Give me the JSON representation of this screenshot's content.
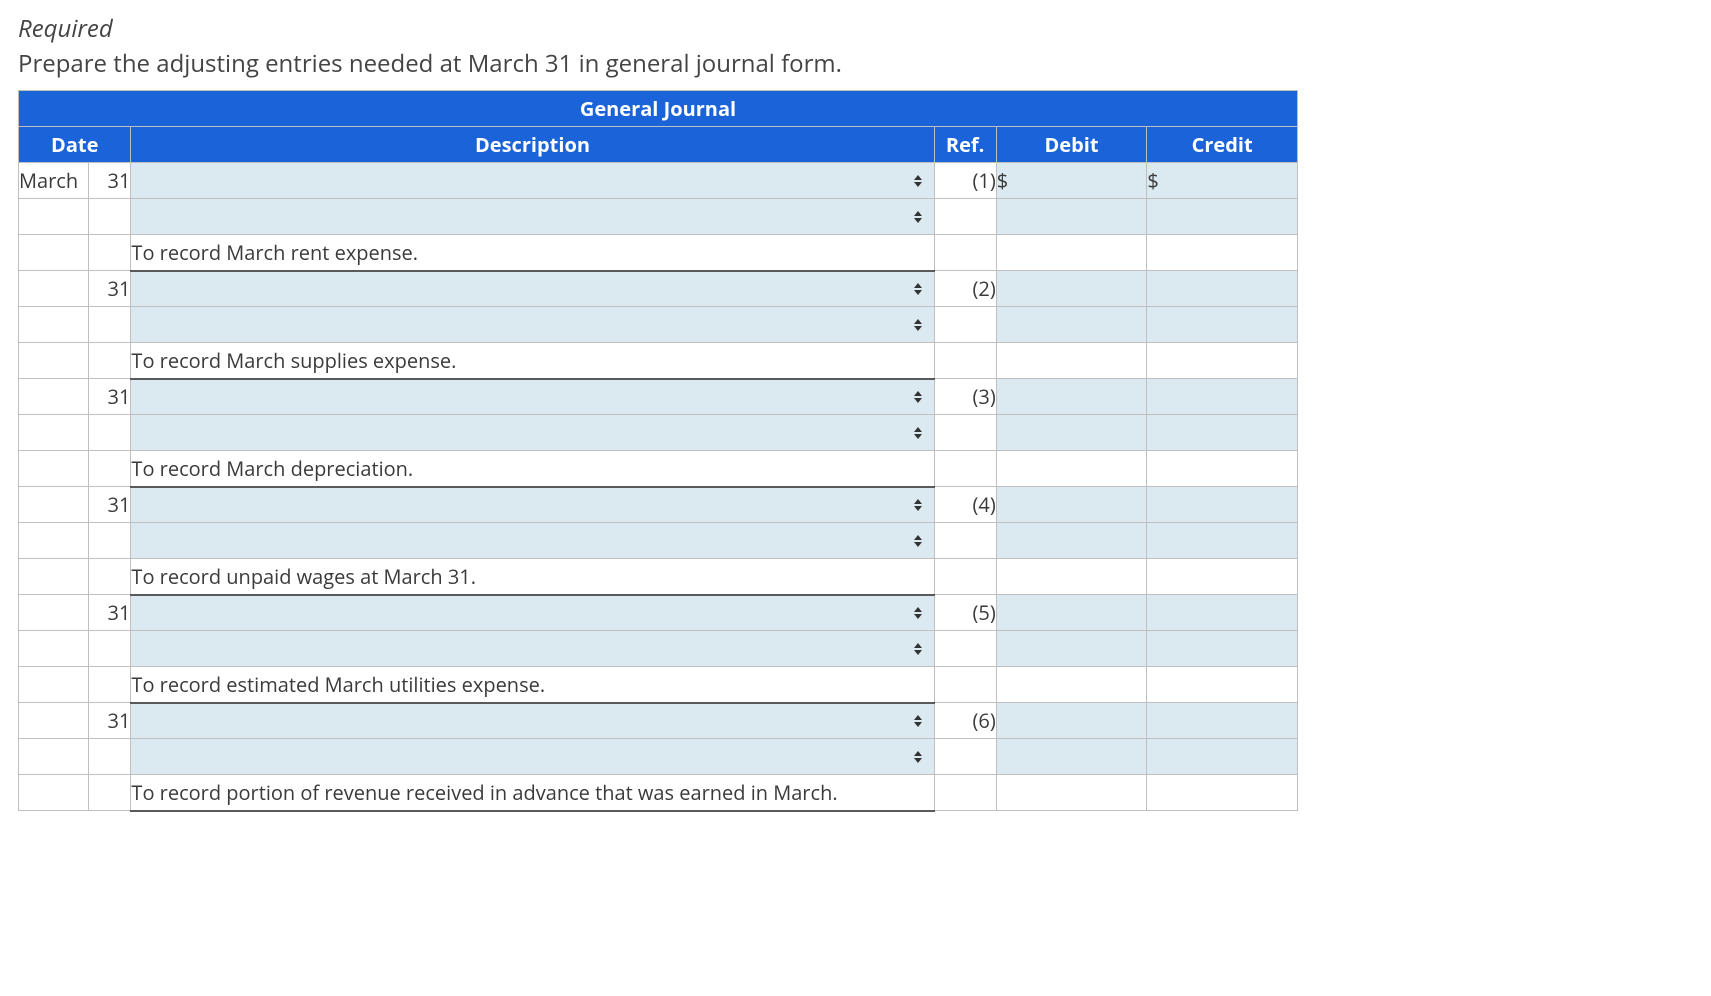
{
  "heading": {
    "required_label": "Required",
    "instruction": "Prepare the adjusting entries needed at March 31 in general journal form."
  },
  "journal": {
    "title": "General Journal",
    "columns": {
      "date": "Date",
      "description": "Description",
      "ref": "Ref.",
      "debit": "Debit",
      "credit": "Credit"
    },
    "month_label": "March",
    "colors": {
      "header_bg": "#1b63d8",
      "header_text": "#ffffff",
      "input_bg": "#dbeaf1",
      "border": "#bfbfbf",
      "desc_underline": "#5a5a5a"
    },
    "entries": [
      {
        "day": "31",
        "ref": "(1)",
        "debit_prefix": "$",
        "credit_prefix": "$",
        "explanation": "To record March rent expense."
      },
      {
        "day": "31",
        "ref": "(2)",
        "debit_prefix": "",
        "credit_prefix": "",
        "explanation": "To record March supplies expense."
      },
      {
        "day": "31",
        "ref": "(3)",
        "debit_prefix": "",
        "credit_prefix": "",
        "explanation": "To record March depreciation."
      },
      {
        "day": "31",
        "ref": "(4)",
        "debit_prefix": "",
        "credit_prefix": "",
        "explanation": "To record unpaid wages at March 31."
      },
      {
        "day": "31",
        "ref": "(5)",
        "debit_prefix": "",
        "credit_prefix": "",
        "explanation": "To record estimated March utilities expense."
      },
      {
        "day": "31",
        "ref": "(6)",
        "debit_prefix": "",
        "credit_prefix": "",
        "explanation": "To record portion of revenue received in advance that was earned in March."
      }
    ]
  }
}
